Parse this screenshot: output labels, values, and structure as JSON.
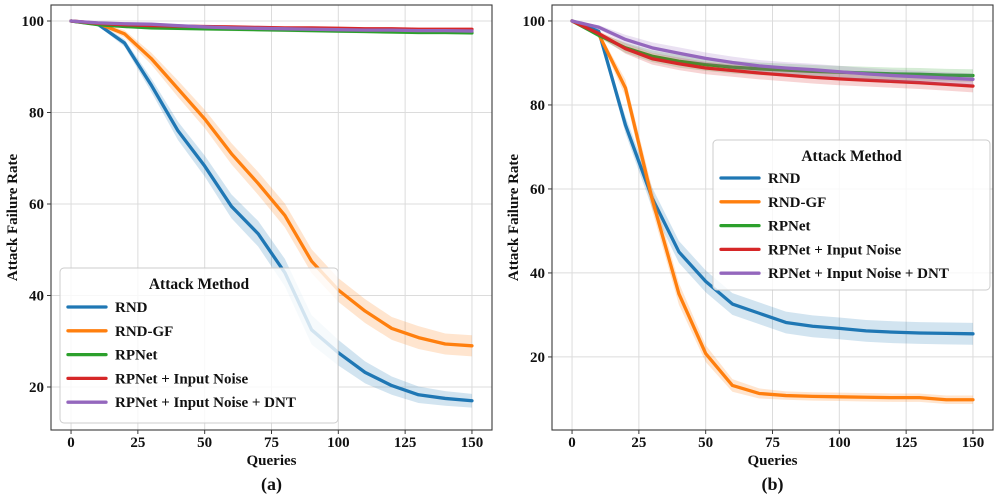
{
  "chart_data": [
    {
      "type": "line",
      "caption": "(a)",
      "xlabel": "Queries",
      "ylabel": "Attack Failure Rate",
      "xlim": [
        -7.5,
        157.5
      ],
      "ylim": [
        10.6,
        103.5
      ],
      "xticks": [
        0,
        25,
        50,
        75,
        100,
        125,
        150
      ],
      "yticks": [
        20,
        40,
        60,
        80,
        100
      ],
      "grid": true,
      "legend": {
        "title": "Attack Method",
        "placement": "lower left"
      },
      "x": [
        0,
        10,
        20,
        30,
        40,
        50,
        60,
        70,
        80,
        90,
        100,
        110,
        120,
        130,
        140,
        150
      ],
      "series": [
        {
          "name": "RND",
          "color": "#1f77b4",
          "values": [
            100,
            99.3,
            95.2,
            86.0,
            76.0,
            68.3,
            59.5,
            53.5,
            45.0,
            32.5,
            27.5,
            23.2,
            20.3,
            18.3,
            17.5,
            17.0
          ],
          "spread": [
            0,
            0.3,
            0.8,
            1.5,
            2.0,
            2.3,
            2.6,
            2.8,
            3.0,
            3.2,
            2.8,
            2.4,
            2.0,
            1.8,
            1.6,
            1.5
          ]
        },
        {
          "name": "RND-GF",
          "color": "#ff7f0e",
          "values": [
            100,
            99.5,
            97.2,
            91.8,
            85.2,
            78.6,
            71.0,
            64.5,
            57.5,
            47.5,
            41.2,
            36.6,
            32.8,
            30.8,
            29.4,
            29.0
          ],
          "spread": [
            0,
            0.3,
            0.8,
            1.3,
            1.8,
            2.0,
            2.3,
            2.5,
            2.6,
            2.6,
            2.6,
            2.6,
            2.5,
            2.5,
            2.3,
            2.3
          ]
        },
        {
          "name": "RPNet",
          "color": "#2ca02c",
          "values": [
            100,
            99.2,
            98.8,
            98.5,
            98.4,
            98.3,
            98.2,
            98.1,
            98.0,
            97.9,
            97.8,
            97.7,
            97.6,
            97.5,
            97.5,
            97.4
          ],
          "spread": [
            0,
            0.2,
            0.3,
            0.4,
            0.4,
            0.4,
            0.4,
            0.4,
            0.4,
            0.4,
            0.4,
            0.4,
            0.4,
            0.4,
            0.4,
            0.4
          ]
        },
        {
          "name": "RPNet + Input Noise",
          "color": "#d62728",
          "values": [
            100,
            99.5,
            99.2,
            99.0,
            98.9,
            98.8,
            98.7,
            98.6,
            98.5,
            98.5,
            98.4,
            98.3,
            98.3,
            98.2,
            98.2,
            98.2
          ],
          "spread": [
            0,
            0.2,
            0.3,
            0.3,
            0.3,
            0.3,
            0.3,
            0.3,
            0.3,
            0.3,
            0.3,
            0.3,
            0.3,
            0.3,
            0.3,
            0.3
          ]
        },
        {
          "name": "RPNet + Input Noise + DNT",
          "color": "#9467bd",
          "values": [
            100,
            99.6,
            99.4,
            99.3,
            99.0,
            98.7,
            98.5,
            98.4,
            98.3,
            98.2,
            98.1,
            98.0,
            98.0,
            97.9,
            97.9,
            97.8
          ],
          "spread": [
            0,
            0.2,
            0.3,
            0.3,
            0.3,
            0.3,
            0.3,
            0.3,
            0.3,
            0.3,
            0.3,
            0.3,
            0.3,
            0.3,
            0.3,
            0.3
          ]
        }
      ]
    },
    {
      "type": "line",
      "caption": "(b)",
      "xlabel": "Queries",
      "ylabel": "Attack Failure Rate",
      "xlim": [
        -7.5,
        157.5
      ],
      "ylim": [
        2.6,
        103.8
      ],
      "xticks": [
        0,
        25,
        50,
        75,
        100,
        125,
        150
      ],
      "yticks": [
        20,
        40,
        60,
        80,
        100
      ],
      "grid": true,
      "legend": {
        "title": "Attack Method",
        "placement": "center right"
      },
      "x": [
        0,
        10,
        20,
        30,
        40,
        50,
        60,
        70,
        80,
        90,
        100,
        110,
        120,
        130,
        140,
        150
      ],
      "series": [
        {
          "name": "RND",
          "color": "#1f77b4",
          "values": [
            100,
            97.5,
            75.2,
            57.8,
            45.0,
            38.0,
            32.6,
            30.4,
            28.2,
            27.3,
            26.8,
            26.2,
            25.9,
            25.7,
            25.6,
            25.5
          ],
          "spread": [
            0,
            0.6,
            2.0,
            2.5,
            2.6,
            2.6,
            2.6,
            2.6,
            2.6,
            2.6,
            2.6,
            2.6,
            2.6,
            2.6,
            2.6,
            2.6
          ]
        },
        {
          "name": "RND-GF",
          "color": "#ff7f0e",
          "values": [
            100,
            96.8,
            84.0,
            57.5,
            35.0,
            20.8,
            13.2,
            11.3,
            10.8,
            10.6,
            10.5,
            10.4,
            10.3,
            10.3,
            9.8,
            9.8
          ],
          "spread": [
            0,
            0.6,
            2.0,
            2.6,
            2.6,
            2.0,
            1.5,
            1.2,
            1.0,
            1.0,
            1.0,
            1.0,
            1.0,
            1.0,
            1.0,
            1.0
          ]
        },
        {
          "name": "RPNet",
          "color": "#2ca02c",
          "values": [
            100,
            96.6,
            93.6,
            91.6,
            90.4,
            89.6,
            89.0,
            88.6,
            88.3,
            88.0,
            87.8,
            87.6,
            87.4,
            87.3,
            87.1,
            87.0
          ],
          "spread": [
            0,
            0.6,
            1.2,
            1.4,
            1.5,
            1.5,
            1.5,
            1.5,
            1.5,
            1.5,
            1.5,
            1.5,
            1.5,
            1.5,
            1.5,
            1.5
          ]
        },
        {
          "name": "RPNet + Input Noise",
          "color": "#d62728",
          "values": [
            100,
            97.0,
            93.4,
            91.0,
            89.8,
            88.8,
            88.2,
            87.6,
            87.1,
            86.6,
            86.2,
            85.9,
            85.6,
            85.3,
            84.9,
            84.5
          ],
          "spread": [
            0,
            0.6,
            1.2,
            1.4,
            1.5,
            1.5,
            1.5,
            1.5,
            1.5,
            1.5,
            1.5,
            1.5,
            1.5,
            1.5,
            1.5,
            1.5
          ]
        },
        {
          "name": "RPNet + Input Noise + DNT",
          "color": "#9467bd",
          "values": [
            100,
            98.5,
            95.6,
            93.6,
            92.3,
            91.1,
            90.1,
            89.3,
            88.8,
            88.4,
            87.9,
            87.4,
            87.0,
            86.7,
            86.4,
            86.1
          ],
          "spread": [
            0,
            0.5,
            1.1,
            1.3,
            1.4,
            1.4,
            1.4,
            1.4,
            1.4,
            1.4,
            1.4,
            1.4,
            1.4,
            1.4,
            1.4,
            1.4
          ]
        }
      ]
    }
  ]
}
